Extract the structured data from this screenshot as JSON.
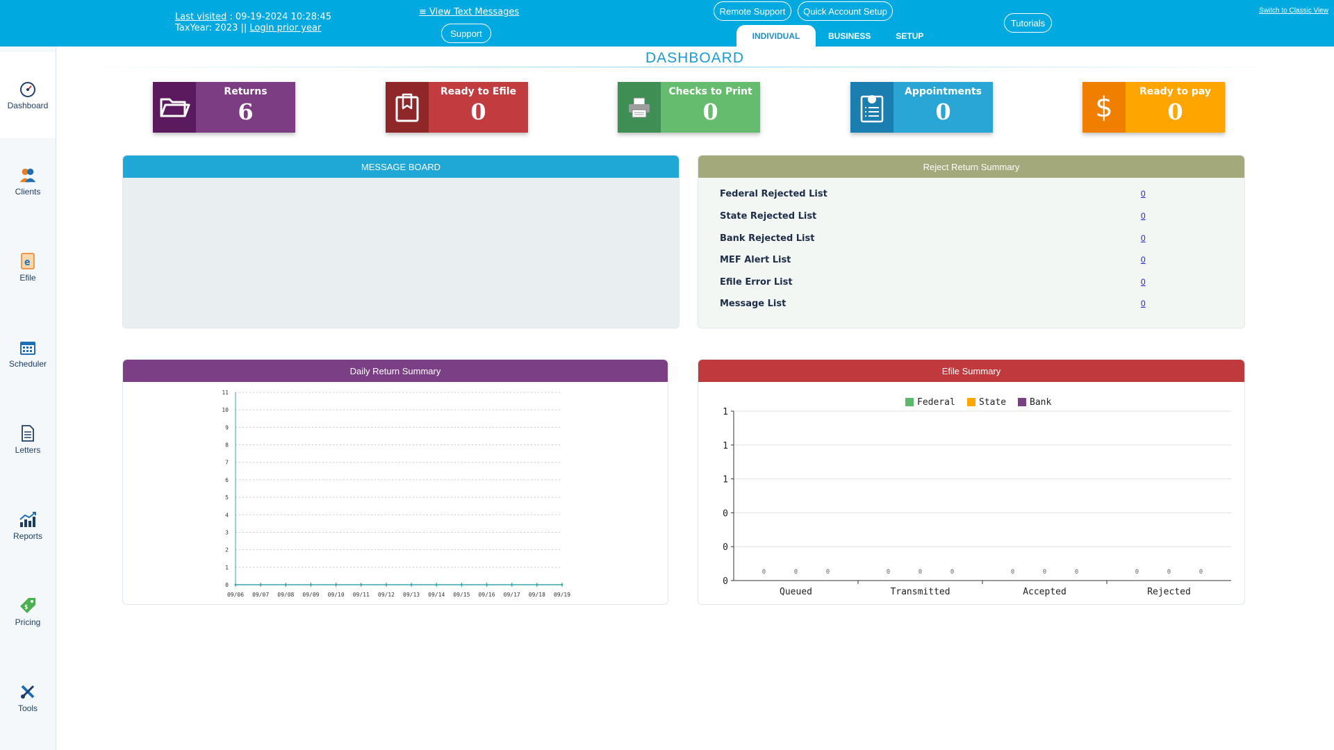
{
  "header": {
    "last_visited_label": "Last visited",
    "last_visited_value": ": 09-19-2024 10:28:45",
    "tax_year_label": "TaxYear:",
    "tax_year_value": "2023",
    "separator": "||",
    "login_prior_year": "Login prior year",
    "view_text_messages": "≡ View Text Messages",
    "support": "Support",
    "remote_support": "Remote Support",
    "quick_account_setup": "Quick Account Setup",
    "tutorials": "Tutorials",
    "switch_classic": "Switch to Classic View",
    "tabs": [
      "INDIVIDUAL",
      "BUSINESS",
      "SETUP"
    ]
  },
  "sidebar": {
    "items": [
      {
        "label": "Dashboard",
        "icon": "dashboard-icon"
      },
      {
        "label": "Clients",
        "icon": "clients-icon"
      },
      {
        "label": "Efile",
        "icon": "efile-icon"
      },
      {
        "label": "Scheduler",
        "icon": "calendar-icon"
      },
      {
        "label": "Letters",
        "icon": "letters-icon"
      },
      {
        "label": "Reports",
        "icon": "reports-icon"
      },
      {
        "label": "Pricing",
        "icon": "pricing-icon"
      },
      {
        "label": "Tools",
        "icon": "tools-icon"
      }
    ]
  },
  "page_title": "DASHBOARD",
  "cards": [
    {
      "label": "Returns",
      "value": "6",
      "icon": "folder-icon",
      "color_dark": "#5b1a5e",
      "color_light": "#7d3d82"
    },
    {
      "label": "Ready to Efile",
      "value": "0",
      "icon": "clipboard-icon",
      "color_dark": "#8f2628",
      "color_light": "#c13b3f"
    },
    {
      "label": "Checks to Print",
      "value": "0",
      "icon": "printer-icon",
      "color_dark": "#3f8f55",
      "color_light": "#66bc6e"
    },
    {
      "label": "Appointments",
      "value": "0",
      "icon": "appointment-icon",
      "color_dark": "#1a7fb0",
      "color_light": "#2aa6d6"
    },
    {
      "label": "Ready to pay",
      "value": "0",
      "icon": "dollar-icon",
      "color_dark": "#f07f00",
      "color_light": "#ffa500"
    }
  ],
  "message_board": {
    "title": "MESSAGE BOARD",
    "color": "#1fa7d6"
  },
  "reject_summary": {
    "title": "Reject Return Summary",
    "color": "#a3a97b",
    "rows": [
      {
        "label": "Federal Rejected List",
        "count": "0"
      },
      {
        "label": "State Rejected List",
        "count": "0"
      },
      {
        "label": "Bank Rejected List",
        "count": "0"
      },
      {
        "label": "MEF Alert List",
        "count": "0"
      },
      {
        "label": "Efile Error List",
        "count": "0"
      },
      {
        "label": "Message List",
        "count": "0"
      }
    ]
  },
  "daily_summary": {
    "title": "Daily Return Summary",
    "color": "#7b3f86"
  },
  "efile_summary": {
    "title": "Efile Summary",
    "color": "#c0393d"
  },
  "chart_data": [
    {
      "type": "line",
      "title": "Daily Return Summary",
      "x": [
        "09/06",
        "09/07",
        "09/08",
        "09/09",
        "09/10",
        "09/11",
        "09/12",
        "09/13",
        "09/14",
        "09/15",
        "09/16",
        "09/17",
        "09/18",
        "09/19"
      ],
      "series": [
        {
          "values": [
            0,
            0,
            0,
            0,
            0,
            0,
            0,
            0,
            0,
            0,
            0,
            0,
            0,
            0
          ],
          "color": "#3aa5a8"
        }
      ],
      "yticks": [
        "0",
        "1",
        "2",
        "3",
        "4",
        "5",
        "6",
        "7",
        "8",
        "9",
        "10",
        "11"
      ],
      "ylim": [
        0,
        11
      ],
      "grid": true
    },
    {
      "type": "bar",
      "title": "Efile Summary",
      "categories": [
        "Queued",
        "Transmitted",
        "Accepted",
        "Rejected"
      ],
      "series": [
        {
          "name": "Federal",
          "values": [
            0,
            0,
            0,
            0
          ],
          "color": "#5cb86a"
        },
        {
          "name": "State",
          "values": [
            0,
            0,
            0,
            0
          ],
          "color": "#ffa500"
        },
        {
          "name": "Bank",
          "values": [
            0,
            0,
            0,
            0
          ],
          "color": "#7b3f86"
        }
      ],
      "yticks": [
        "0",
        "0",
        "0",
        "1",
        "1",
        "1"
      ],
      "legend": "top-center",
      "grid": true
    }
  ]
}
